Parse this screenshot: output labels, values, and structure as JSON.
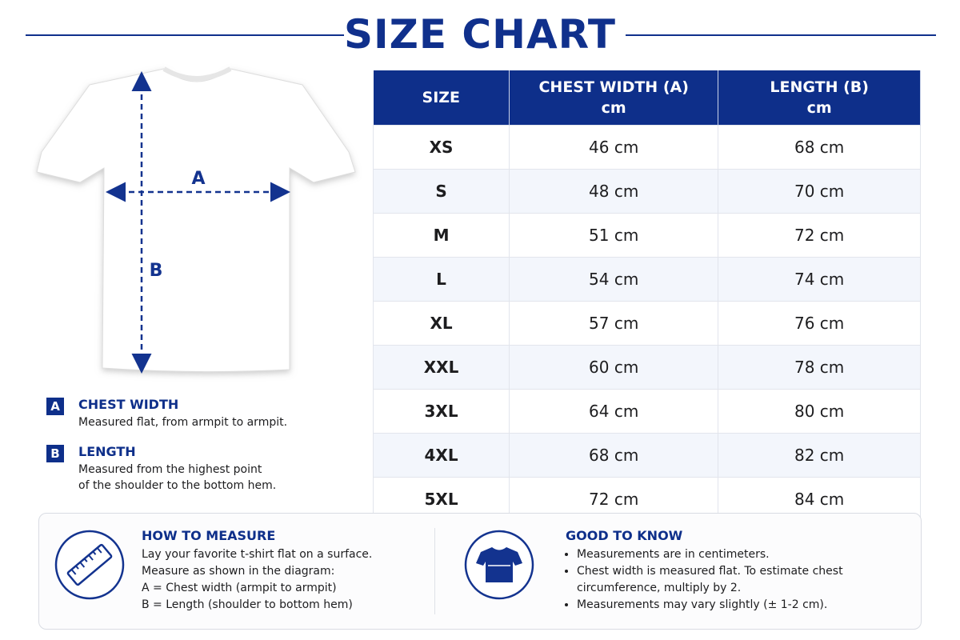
{
  "header": {
    "title": "SIZE CHART"
  },
  "diagram": {
    "a_label": "A",
    "b_label": "B"
  },
  "legend": [
    {
      "key": "A",
      "title": "CHEST WIDTH",
      "lines": [
        "Measured flat, from armpit to armpit."
      ]
    },
    {
      "key": "B",
      "title": "LENGTH",
      "lines": [
        "Measured from the highest point",
        "of the shoulder to the bottom hem."
      ]
    }
  ],
  "table": {
    "columns": [
      {
        "label": "SIZE"
      },
      {
        "label": "CHEST WIDTH (A)",
        "unit": "cm"
      },
      {
        "label": "LENGTH (B)",
        "unit": "cm"
      }
    ],
    "rows": [
      [
        "XS",
        "46 cm",
        "68 cm"
      ],
      [
        "S",
        "48 cm",
        "70 cm"
      ],
      [
        "M",
        "51 cm",
        "72 cm"
      ],
      [
        "L",
        "54 cm",
        "74 cm"
      ],
      [
        "XL",
        "57 cm",
        "76 cm"
      ],
      [
        "XXL",
        "60 cm",
        "78 cm"
      ],
      [
        "3XL",
        "64 cm",
        "80 cm"
      ],
      [
        "4XL",
        "68 cm",
        "82 cm"
      ],
      [
        "5XL",
        "72 cm",
        "84 cm"
      ]
    ]
  },
  "how_to_measure": {
    "title": "HOW TO MEASURE",
    "lines": [
      "Lay your favorite t-shirt flat on a surface.",
      "Measure as shown in the diagram:",
      "A = Chest width (armpit to armpit)",
      "B = Length (shoulder to bottom hem)"
    ]
  },
  "good_to_know": {
    "title": "GOOD TO KNOW",
    "bullets": [
      "Measurements are in centimeters.",
      "Chest width is measured flat. To estimate chest circumference, multiply by 2.",
      "Measurements may vary slightly (± 1-2 cm)."
    ]
  }
}
